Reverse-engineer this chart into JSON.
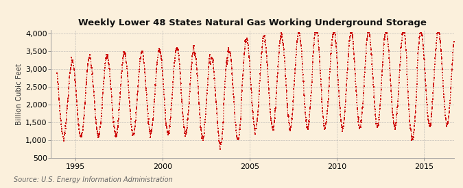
{
  "title": "Weekly Lower 48 States Natural Gas Working Underground Storage",
  "ylabel": "Billion Cubic Feet",
  "source": "Source: U.S. Energy Information Administration",
  "line_color": "#CC0000",
  "background_color": "#FBF0DC",
  "plot_bg_color": "#FBF0DC",
  "grid_color": "#AAAAAA",
  "xlim_start": 1993.6,
  "xlim_end": 2016.7,
  "ylim_bottom": 500,
  "ylim_top": 4100,
  "yticks": [
    500,
    1000,
    1500,
    2000,
    2500,
    3000,
    3500,
    4000
  ],
  "xticks": [
    1995,
    2000,
    2005,
    2010,
    2015
  ],
  "title_fontsize": 9.5,
  "ylabel_fontsize": 7.5,
  "tick_fontsize": 8
}
